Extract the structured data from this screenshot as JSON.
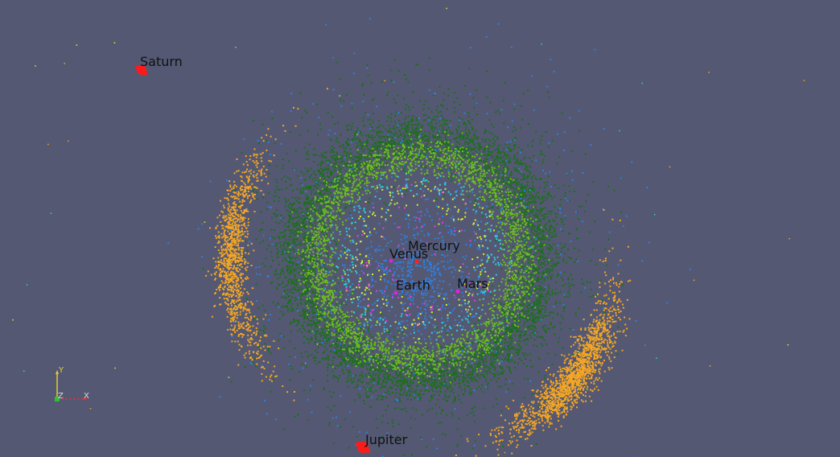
{
  "view": {
    "background": "#545873",
    "label_color": "#111111"
  },
  "planets": [
    {
      "id": "saturn",
      "label": "Saturn",
      "color": "#ff1a1a"
    },
    {
      "id": "jupiter",
      "label": "Jupiter",
      "color": "#ff1a1a"
    },
    {
      "id": "mercury",
      "label": "Mercury",
      "color": "#ff2020"
    },
    {
      "id": "venus",
      "label": "Venus",
      "color": "#e020e0"
    },
    {
      "id": "earth",
      "label": "Earth",
      "color": "#e020e0"
    },
    {
      "id": "mars",
      "label": "Mars",
      "color": "#e020e0"
    }
  ],
  "particle_colors": {
    "outer_belt": "#1c6e1c",
    "middle_belt": "#6fbf1f",
    "inner_cloud": "#2f7fe0",
    "cyan_points": "#30d0e0",
    "yellow_points": "#d8f030",
    "magenta_points": "#e040e0",
    "trojans": "#f5a623"
  },
  "axes": {
    "x_label": "X",
    "y_label": "Y",
    "z_label": "Z",
    "x_color": "#e03030",
    "y_color": "#e0d030",
    "z_color": "#30c030"
  }
}
